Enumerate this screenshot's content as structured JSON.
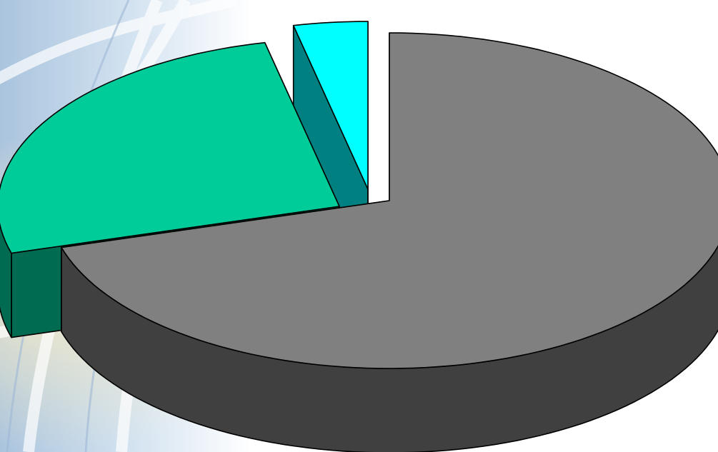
{
  "chart_data": {
    "type": "pie",
    "style": "3d-exploded",
    "slices": [
      {
        "value": 70.5,
        "color": "#808080",
        "side_color": "#404040"
      },
      {
        "value": 26.0,
        "color": "#00CC99",
        "side_color": "#006B50"
      },
      {
        "value": 3.5,
        "color": "#00FFFF",
        "side_color": "#008080"
      }
    ],
    "labels_shown": false,
    "legend": "none"
  }
}
